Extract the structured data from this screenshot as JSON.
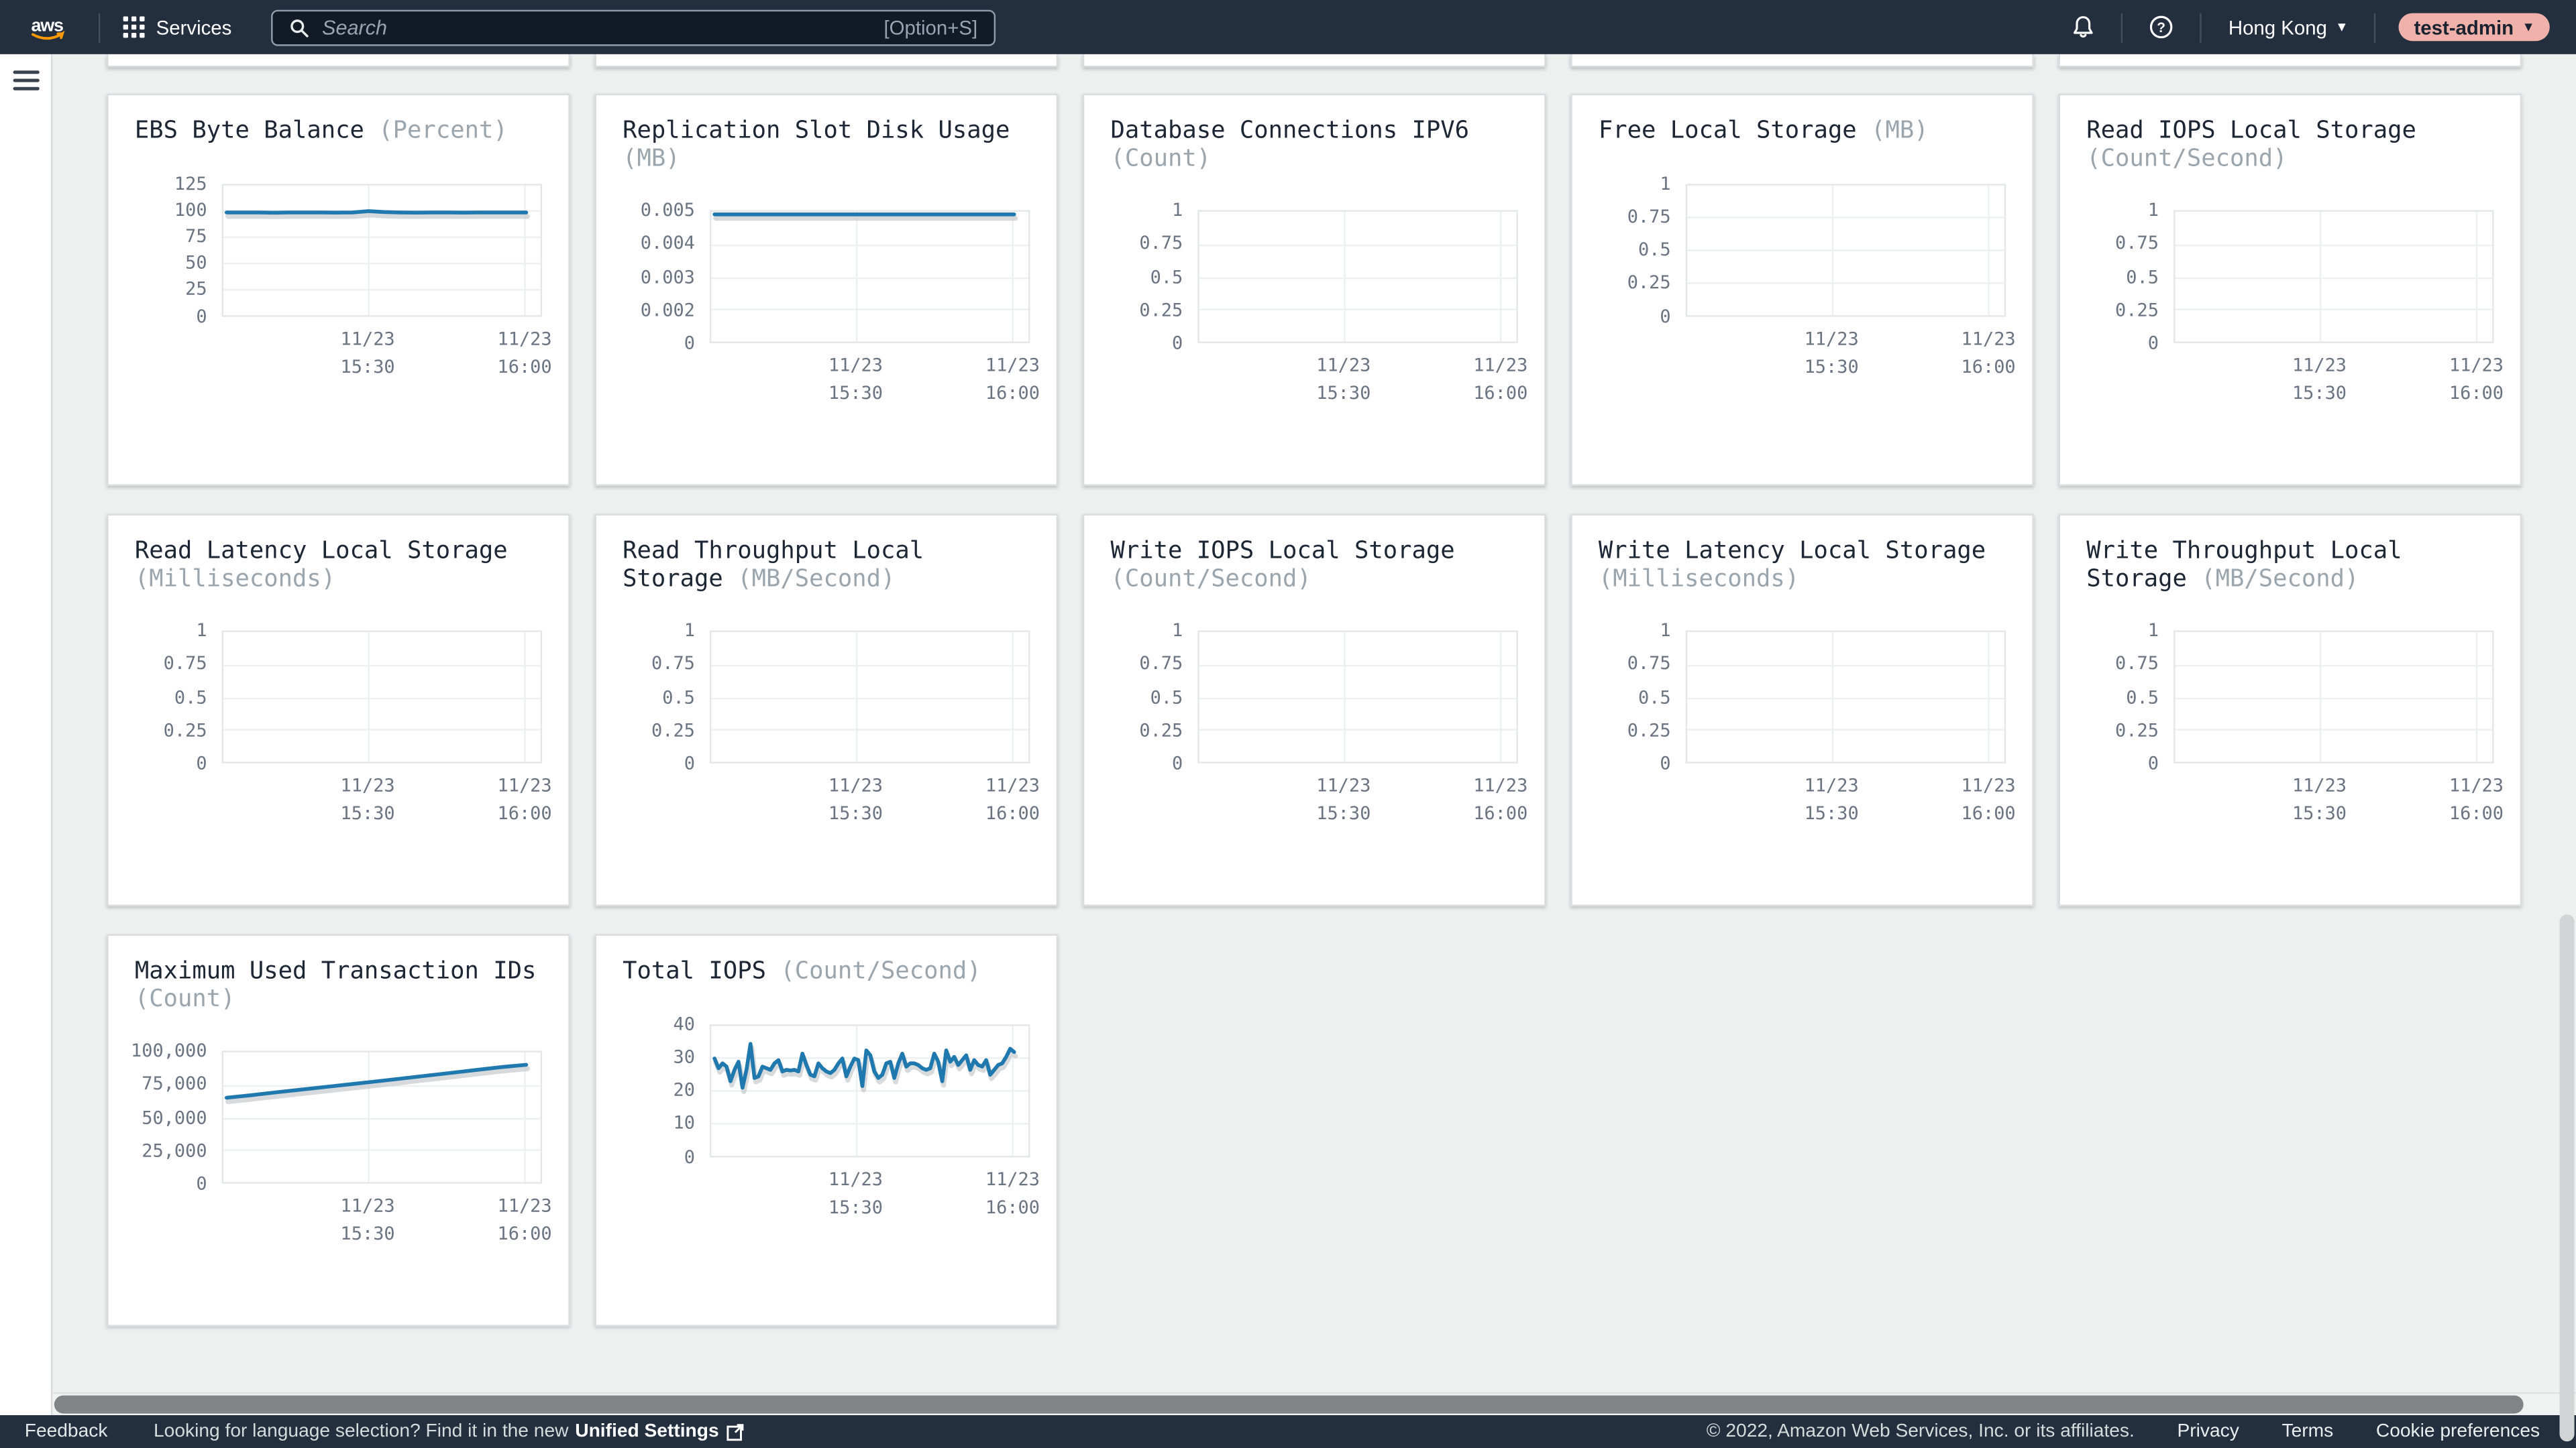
{
  "topnav": {
    "logo": "aws",
    "services_label": "Services",
    "search_placeholder": "Search",
    "search_shortcut": "[Option+S]",
    "region_label": "Hong Kong",
    "user_label": "test-admin"
  },
  "footer": {
    "feedback": "Feedback",
    "language_text": "Looking for language selection? Find it in the new",
    "language_link": "Unified Settings",
    "copyright": "© 2022, Amazon Web Services, Inc. or its affiliates.",
    "links": [
      "Privacy",
      "Terms",
      "Cookie preferences"
    ]
  },
  "colors": {
    "line": "#1f78ae",
    "line_shadow": "#c6cbce",
    "nav_bg": "#232f3e",
    "user_pill_bg": "#efb1aa",
    "card_bg": "#ffffff",
    "content_bg": "#eef0f0"
  },
  "chart_data": [
    {
      "type": "line",
      "title": "EBS Byte Balance",
      "unit": "(Percent)",
      "yticks": [
        "125",
        "100",
        "75",
        "50",
        "25",
        "0"
      ],
      "ymax": 125,
      "xticks": [
        [
          "11/23",
          "15:30"
        ],
        [
          "11/23",
          "16:00"
        ]
      ],
      "values": [
        99,
        99,
        99,
        98.8,
        99,
        99,
        99,
        98.9,
        99,
        100.3,
        99.4,
        99,
        98.9,
        99,
        99,
        98.9,
        99,
        99,
        99,
        99
      ]
    },
    {
      "type": "line",
      "title": "Replication Slot Disk Usage",
      "unit": "(MB)",
      "yticks": [
        "0.005",
        "0.004",
        "0.003",
        "0.002",
        "0"
      ],
      "ymax": 0.005,
      "xticks": [
        [
          "11/23",
          "15:30"
        ],
        [
          "11/23",
          "16:00"
        ]
      ],
      "values": [
        0.0049,
        0.0049,
        0.0049,
        0.0049,
        0.0049,
        0.0049,
        0.0049,
        0.0049,
        0.0049,
        0.0049,
        0.0049,
        0.0049,
        0.0049,
        0.0049,
        0.0049,
        0.0049,
        0.0049,
        0.0049,
        0.0049,
        0.0049
      ]
    },
    {
      "type": "line",
      "title": "Database Connections IPV6",
      "unit": "(Count)",
      "yticks": [
        "1",
        "0.75",
        "0.5",
        "0.25",
        "0"
      ],
      "ymax": 1,
      "xticks": [
        [
          "11/23",
          "15:30"
        ],
        [
          "11/23",
          "16:00"
        ]
      ],
      "values": null
    },
    {
      "type": "line",
      "title": "Free Local Storage",
      "unit": "(MB)",
      "yticks": [
        "1",
        "0.75",
        "0.5",
        "0.25",
        "0"
      ],
      "ymax": 1,
      "xticks": [
        [
          "11/23",
          "15:30"
        ],
        [
          "11/23",
          "16:00"
        ]
      ],
      "values": null
    },
    {
      "type": "line",
      "title": "Read IOPS Local Storage",
      "unit": "(Count/Second)",
      "yticks": [
        "1",
        "0.75",
        "0.5",
        "0.25",
        "0"
      ],
      "ymax": 1,
      "xticks": [
        [
          "11/23",
          "15:30"
        ],
        [
          "11/23",
          "16:00"
        ]
      ],
      "values": null
    },
    {
      "type": "line",
      "title": "Read Latency Local Storage",
      "unit": "(Milliseconds)",
      "yticks": [
        "1",
        "0.75",
        "0.5",
        "0.25",
        "0"
      ],
      "ymax": 1,
      "xticks": [
        [
          "11/23",
          "15:30"
        ],
        [
          "11/23",
          "16:00"
        ]
      ],
      "values": null
    },
    {
      "type": "line",
      "title": "Read Throughput Local Storage",
      "unit": "(MB/Second)",
      "yticks": [
        "1",
        "0.75",
        "0.5",
        "0.25",
        "0"
      ],
      "ymax": 1,
      "xticks": [
        [
          "11/23",
          "15:30"
        ],
        [
          "11/23",
          "16:00"
        ]
      ],
      "values": null
    },
    {
      "type": "line",
      "title": "Write IOPS Local Storage",
      "unit": "(Count/Second)",
      "yticks": [
        "1",
        "0.75",
        "0.5",
        "0.25",
        "0"
      ],
      "ymax": 1,
      "xticks": [
        [
          "11/23",
          "15:30"
        ],
        [
          "11/23",
          "16:00"
        ]
      ],
      "values": null
    },
    {
      "type": "line",
      "title": "Write Latency Local Storage",
      "unit": "(Milliseconds)",
      "yticks": [
        "1",
        "0.75",
        "0.5",
        "0.25",
        "0"
      ],
      "ymax": 1,
      "xticks": [
        [
          "11/23",
          "15:30"
        ],
        [
          "11/23",
          "16:00"
        ]
      ],
      "values": null
    },
    {
      "type": "line",
      "title": "Write Throughput Local Storage",
      "unit": "(MB/Second)",
      "yticks": [
        "1",
        "0.75",
        "0.5",
        "0.25",
        "0"
      ],
      "ymax": 1,
      "xticks": [
        [
          "11/23",
          "15:30"
        ],
        [
          "11/23",
          "16:00"
        ]
      ],
      "values": null
    },
    {
      "type": "line",
      "title": "Maximum Used Transaction IDs",
      "unit": "(Count)",
      "yticks": [
        "100,000",
        "75,000",
        "50,000",
        "25,000",
        "0"
      ],
      "ymax": 100000,
      "xticks": [
        [
          "11/23",
          "15:30"
        ],
        [
          "11/23",
          "16:00"
        ]
      ],
      "values": [
        65000,
        67000,
        69200,
        71300,
        73400,
        75500,
        77600,
        79800,
        82000,
        84200,
        86400,
        88600,
        90400
      ]
    },
    {
      "type": "line",
      "title": "Total IOPS",
      "unit": "(Count/Second)",
      "yticks": [
        "40",
        "30",
        "20",
        "10",
        "0"
      ],
      "ymax": 40,
      "xticks": [
        [
          "11/23",
          "15:30"
        ],
        [
          "11/23",
          "16:00"
        ]
      ],
      "values": [
        30,
        27,
        28.5,
        27.5,
        23,
        26.5,
        29,
        21,
        26.5,
        34.5,
        24,
        24.5,
        27.5,
        27,
        26.5,
        28.5,
        29.5,
        26,
        26.5,
        26.3,
        26.5,
        26,
        31.5,
        28,
        25,
        24.5,
        28.5,
        27,
        26,
        25.5,
        26.5,
        28.5,
        30,
        24.5,
        27.5,
        30,
        29.5,
        21.5,
        32.5,
        31,
        26,
        24,
        25,
        28.5,
        29,
        24,
        28.5,
        31.5,
        27.5,
        28.5,
        28.5,
        28,
        27,
        26.5,
        27,
        31.5,
        29,
        23,
        32.5,
        29,
        30.5,
        28,
        29.5,
        31,
        26.5,
        29.5,
        28,
        27.5,
        29.5,
        25,
        26.5,
        28,
        28.5,
        30.5,
        33,
        32
      ]
    }
  ]
}
